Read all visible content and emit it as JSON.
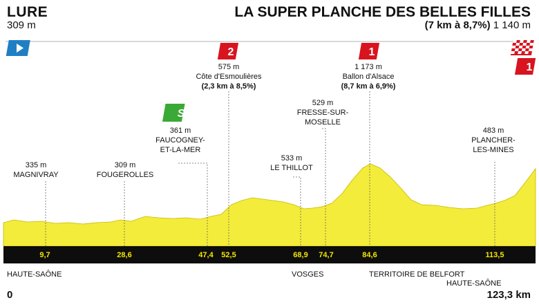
{
  "start": {
    "name": "LURE",
    "altitude": "309 m"
  },
  "finish": {
    "name": "LA SUPER PLANCHE DES BELLES FILLES",
    "climb": "(7 km à 8,7%)",
    "altitude": "1 140 m"
  },
  "colors": {
    "profile": "#f3ec3a",
    "band": "#0d0d0d",
    "km_text": "#f3e600",
    "climb_red": "#d8141f",
    "sprint_green": "#3aa935",
    "start_blue": "#1f7fc4"
  },
  "icons": {
    "start": "start-flag-icon",
    "finish": "finish-checkered-flag-icon"
  },
  "markers": {
    "magnivray": {
      "alt": "335 m",
      "name": "MAGNIVRAY",
      "km": "9,7"
    },
    "fougerolles": {
      "alt": "309 m",
      "name": "FOUGEROLLES",
      "km": "28,6"
    },
    "faucogney": {
      "alt": "361 m",
      "line1": "FAUCOGNEY-",
      "line2": "ET-LA-MER",
      "km": "47,4",
      "badge": "S"
    },
    "esmoulieres": {
      "alt": "575 m",
      "name": "Côte d'Esmoulières",
      "detail": "(2,3 km à 8,5%)",
      "km": "52,5",
      "category": "2"
    },
    "thillot": {
      "alt": "533 m",
      "name": "LE THILLOT",
      "km": "68,9"
    },
    "fresse": {
      "alt": "529 m",
      "line1": "FRESSE-SUR-",
      "line2": "MOSELLE",
      "km": "74,7"
    },
    "alsace": {
      "alt": "1 173 m",
      "name": "Ballon d'Alsace",
      "detail": "(8,7 km à 6,9%)",
      "km": "84,6",
      "category": "1"
    },
    "plancher": {
      "alt": "483 m",
      "line1": "PLANCHER-",
      "line2": "LES-MINES",
      "km": "113,5"
    },
    "finish_category": "1"
  },
  "regions": {
    "haute_saone_1": "HAUTE-SAÔNE",
    "vosges": "VOSGES",
    "belfort": "TERRITOIRE DE BELFORT",
    "haute_saone_2": "HAUTE-SAÔNE"
  },
  "distance": {
    "start": "0",
    "end": "123,3 km"
  },
  "chart_data": {
    "type": "area",
    "x": [
      0,
      9.7,
      28.6,
      47.4,
      52.5,
      68.9,
      74.7,
      84.6,
      113.5,
      123.3
    ],
    "y": [
      309,
      335,
      309,
      361,
      575,
      533,
      529,
      1173,
      483,
      1140
    ]
  }
}
